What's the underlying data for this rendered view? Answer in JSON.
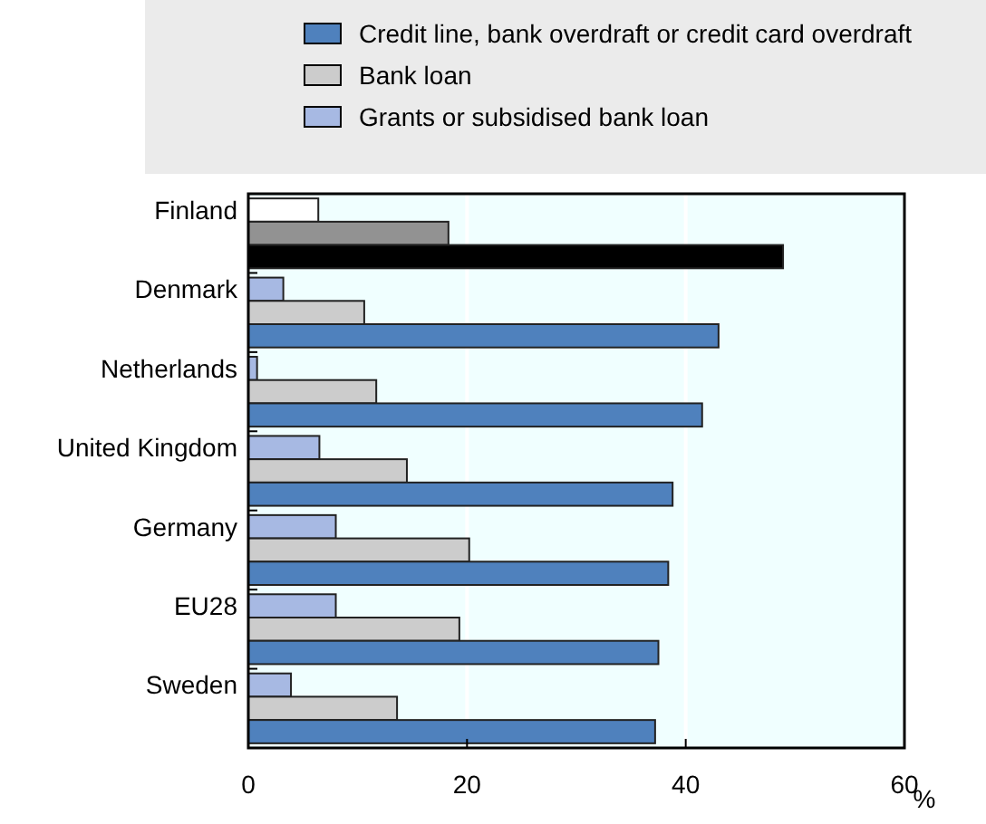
{
  "chart_data": {
    "type": "bar",
    "orientation": "horizontal",
    "xlabel": "%",
    "categories": [
      "Finland",
      "Denmark",
      "Netherlands",
      "United Kingdom",
      "Germany",
      "EU28",
      "Sweden"
    ],
    "series": [
      {
        "name": "Grants or subsidised bank loan",
        "color": "#a7b9e3",
        "colors": [
          "#ffffff",
          "#a7b9e3",
          "#a7b9e3",
          "#a7b9e3",
          "#a7b9e3",
          "#a7b9e3",
          "#a7b9e3"
        ],
        "values": [
          6.4,
          3.2,
          0.8,
          6.5,
          8.0,
          8.0,
          3.9
        ]
      },
      {
        "name": "Bank loan",
        "color": "#cccccc",
        "colors": [
          "#929292",
          "#cccccc",
          "#cccccc",
          "#cccccc",
          "#cccccc",
          "#cccccc",
          "#cccccc"
        ],
        "values": [
          18.3,
          10.6,
          11.7,
          14.5,
          20.2,
          19.3,
          13.6
        ]
      },
      {
        "name": "Credit line, bank overdraft or credit card overdraft",
        "color": "#4f81bd",
        "colors": [
          "#000000",
          "#4f81bd",
          "#4f81bd",
          "#4f81bd",
          "#4f81bd",
          "#4f81bd",
          "#4f81bd"
        ],
        "values": [
          48.9,
          43.0,
          41.5,
          38.8,
          38.4,
          37.5,
          37.2
        ]
      }
    ],
    "xlim": [
      0,
      60
    ],
    "xticks": [
      0,
      20,
      40,
      60
    ],
    "grid": "x",
    "legend": "top right"
  }
}
